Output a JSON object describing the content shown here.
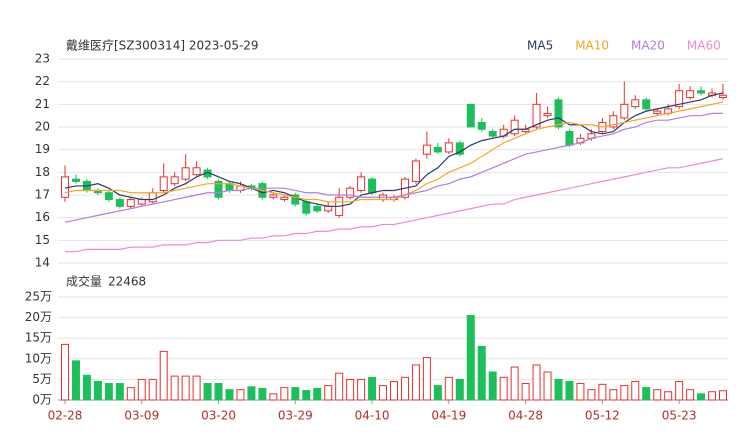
{
  "chart_data": {
    "type": "candlestick",
    "title": "戴维医疗[SZ300314] 2023-05-29",
    "categories": [
      "02-28",
      null,
      null,
      null,
      null,
      null,
      null,
      "03-09",
      null,
      null,
      null,
      null,
      null,
      null,
      "03-20",
      null,
      null,
      null,
      null,
      null,
      null,
      "03-29",
      null,
      null,
      null,
      null,
      null,
      null,
      "04-10",
      null,
      null,
      null,
      null,
      null,
      null,
      "04-19",
      null,
      null,
      null,
      null,
      null,
      null,
      "04-28",
      null,
      null,
      null,
      null,
      null,
      null,
      "05-12",
      null,
      null,
      null,
      null,
      null,
      null,
      "05-23",
      null,
      null,
      null,
      null
    ],
    "open": [
      16.9,
      17.7,
      17.6,
      17.2,
      17.1,
      16.8,
      16.5,
      16.6,
      16.7,
      17.2,
      17.5,
      17.7,
      17.9,
      18.1,
      17.6,
      17.5,
      17.2,
      17.4,
      17.5,
      16.9,
      16.8,
      17.0,
      16.7,
      16.5,
      16.3,
      16.1,
      16.9,
      17.2,
      17.7,
      16.8,
      16.8,
      16.9,
      17.6,
      18.8,
      19.1,
      18.9,
      19.3,
      21.0,
      20.2,
      19.8,
      19.6,
      19.7,
      19.8,
      20.0,
      20.5,
      21.2,
      19.8,
      19.3,
      19.5,
      19.8,
      20.0,
      20.4,
      20.9,
      21.2,
      20.6,
      20.6,
      20.9,
      21.3,
      21.6,
      21.4,
      21.3
    ],
    "high": [
      18.3,
      17.9,
      17.7,
      17.3,
      17.2,
      16.9,
      16.9,
      16.9,
      17.3,
      18.4,
      18.0,
      18.8,
      18.5,
      18.2,
      17.7,
      17.6,
      17.6,
      17.5,
      17.6,
      17.1,
      17.0,
      17.1,
      16.8,
      16.6,
      16.7,
      17.3,
      17.4,
      18.0,
      17.8,
      17.1,
      17.0,
      17.8,
      18.6,
      19.8,
      19.3,
      19.5,
      19.4,
      21.0,
      20.4,
      19.9,
      20.1,
      20.5,
      20.1,
      21.5,
      20.9,
      21.3,
      19.9,
      19.7,
      19.9,
      20.4,
      20.7,
      22.0,
      21.4,
      21.3,
      20.8,
      21.0,
      21.9,
      21.8,
      21.8,
      21.7,
      21.9
    ],
    "low": [
      16.7,
      17.5,
      17.1,
      17.0,
      16.7,
      16.4,
      16.4,
      16.5,
      16.6,
      17.1,
      17.4,
      17.6,
      17.8,
      17.7,
      16.8,
      17.1,
      17.1,
      17.2,
      16.8,
      16.8,
      16.7,
      16.5,
      16.1,
      16.2,
      16.2,
      16.0,
      16.8,
      17.1,
      17.0,
      16.7,
      16.7,
      16.8,
      17.5,
      18.6,
      18.8,
      18.8,
      18.7,
      20.0,
      19.8,
      19.5,
      19.5,
      19.6,
      19.7,
      19.9,
      20.4,
      19.9,
      19.1,
      19.2,
      19.4,
      19.7,
      19.9,
      20.3,
      20.8,
      20.7,
      20.5,
      20.5,
      20.8,
      21.2,
      21.4,
      21.3,
      21.2
    ],
    "close": [
      17.8,
      17.6,
      17.2,
      17.1,
      16.8,
      16.5,
      16.8,
      16.8,
      17.1,
      17.8,
      17.8,
      18.2,
      18.2,
      17.8,
      16.9,
      17.2,
      17.4,
      17.3,
      16.9,
      17.0,
      16.9,
      16.6,
      16.2,
      16.3,
      16.5,
      16.9,
      17.3,
      17.8,
      17.1,
      17.0,
      16.9,
      17.7,
      18.5,
      19.2,
      18.9,
      19.3,
      18.8,
      20.0,
      19.9,
      19.6,
      19.9,
      20.3,
      19.9,
      21.0,
      20.6,
      20.0,
      19.2,
      19.5,
      19.7,
      20.2,
      20.5,
      21.0,
      21.2,
      20.8,
      20.7,
      20.8,
      21.6,
      21.6,
      21.5,
      21.5,
      21.4
    ],
    "up_color": "#e8312f",
    "down_color": "#1dbf5b",
    "ylim": [
      14,
      23
    ],
    "yticks": [
      14,
      15,
      16,
      17,
      18,
      19,
      20,
      21,
      22,
      23
    ],
    "series": [
      {
        "name": "MA5",
        "color": "#2b3a67",
        "values": [
          17.3,
          17.4,
          17.4,
          17.5,
          17.3,
          17.0,
          16.9,
          16.8,
          16.8,
          17.0,
          17.3,
          17.5,
          17.8,
          18.0,
          17.8,
          17.6,
          17.5,
          17.3,
          17.1,
          17.2,
          17.1,
          16.9,
          16.7,
          16.6,
          16.5,
          16.5,
          16.6,
          17.0,
          17.1,
          17.2,
          17.2,
          17.3,
          17.4,
          17.9,
          18.2,
          18.7,
          18.9,
          19.2,
          19.4,
          19.5,
          19.6,
          19.9,
          19.9,
          20.1,
          20.3,
          20.4,
          20.1,
          20.1,
          19.8,
          19.7,
          19.8,
          20.2,
          20.5,
          20.7,
          20.8,
          20.9,
          21.0,
          21.1,
          21.2,
          21.4,
          21.5
        ]
      },
      {
        "name": "MA10",
        "color": "#f5a623",
        "values": [
          17.1,
          17.2,
          17.2,
          17.2,
          17.2,
          17.2,
          17.1,
          17.1,
          17.1,
          17.1,
          17.2,
          17.3,
          17.4,
          17.5,
          17.5,
          17.5,
          17.4,
          17.3,
          17.2,
          17.1,
          17.0,
          16.9,
          16.8,
          16.8,
          16.7,
          16.7,
          16.7,
          16.8,
          16.8,
          16.8,
          16.8,
          17.0,
          17.2,
          17.5,
          17.7,
          18.0,
          18.2,
          18.4,
          18.7,
          19.0,
          19.3,
          19.5,
          19.7,
          19.9,
          20.0,
          20.1,
          20.2,
          20.1,
          20.1,
          20.0,
          20.1,
          20.2,
          20.3,
          20.4,
          20.5,
          20.6,
          20.7,
          20.8,
          20.9,
          21.0,
          21.1
        ]
      },
      {
        "name": "MA20",
        "color": "#b07fd9",
        "values": [
          15.8,
          15.9,
          16.0,
          16.1,
          16.2,
          16.3,
          16.4,
          16.5,
          16.6,
          16.7,
          16.8,
          16.9,
          17.0,
          17.1,
          17.1,
          17.2,
          17.2,
          17.3,
          17.3,
          17.3,
          17.3,
          17.2,
          17.1,
          17.1,
          17.0,
          17.0,
          17.0,
          16.9,
          16.9,
          16.9,
          16.9,
          17.0,
          17.1,
          17.2,
          17.4,
          17.5,
          17.7,
          17.8,
          18.0,
          18.2,
          18.4,
          18.6,
          18.8,
          18.9,
          19.0,
          19.1,
          19.2,
          19.3,
          19.5,
          19.6,
          19.7,
          19.9,
          20.0,
          20.2,
          20.3,
          20.3,
          20.4,
          20.5,
          20.5,
          20.6,
          20.6
        ]
      },
      {
        "name": "MA60",
        "color": "#f08ad0",
        "values": [
          14.5,
          14.5,
          14.6,
          14.6,
          14.6,
          14.6,
          14.7,
          14.7,
          14.7,
          14.8,
          14.8,
          14.8,
          14.9,
          14.9,
          15.0,
          15.0,
          15.0,
          15.1,
          15.1,
          15.2,
          15.2,
          15.3,
          15.3,
          15.4,
          15.4,
          15.5,
          15.5,
          15.6,
          15.6,
          15.7,
          15.7,
          15.8,
          15.9,
          16.0,
          16.1,
          16.2,
          16.3,
          16.4,
          16.5,
          16.6,
          16.6,
          16.8,
          16.9,
          17.0,
          17.1,
          17.2,
          17.3,
          17.4,
          17.5,
          17.6,
          17.7,
          17.8,
          17.9,
          18.0,
          18.1,
          18.2,
          18.2,
          18.3,
          18.4,
          18.5,
          18.6
        ]
      }
    ],
    "volume_title": "成交量",
    "volume": [
      135000,
      95000,
      60000,
      45000,
      40000,
      40000,
      30000,
      50000,
      50000,
      118000,
      58000,
      58000,
      58000,
      40000,
      40000,
      25000,
      25000,
      32000,
      28000,
      15000,
      30000,
      30000,
      23000,
      28000,
      35000,
      65000,
      50000,
      50000,
      55000,
      35000,
      45000,
      55000,
      85000,
      103000,
      35000,
      55000,
      50000,
      205000,
      130000,
      68000,
      55000,
      80000,
      40000,
      85000,
      68000,
      50000,
      45000,
      40000,
      25000,
      38000,
      25000,
      35000,
      45000,
      30000,
      25000,
      20000,
      45000,
      25000,
      15000,
      20000,
      22468
    ],
    "volume_ylim": [
      0,
      250000
    ],
    "volume_yticks": [
      {
        "value": 0,
        "label": "0万"
      },
      {
        "value": 50000,
        "label": "5万"
      },
      {
        "value": 100000,
        "label": "10万"
      },
      {
        "value": 150000,
        "label": "15万"
      },
      {
        "value": 200000,
        "label": "20万"
      },
      {
        "value": 250000,
        "label": "25万"
      }
    ]
  }
}
